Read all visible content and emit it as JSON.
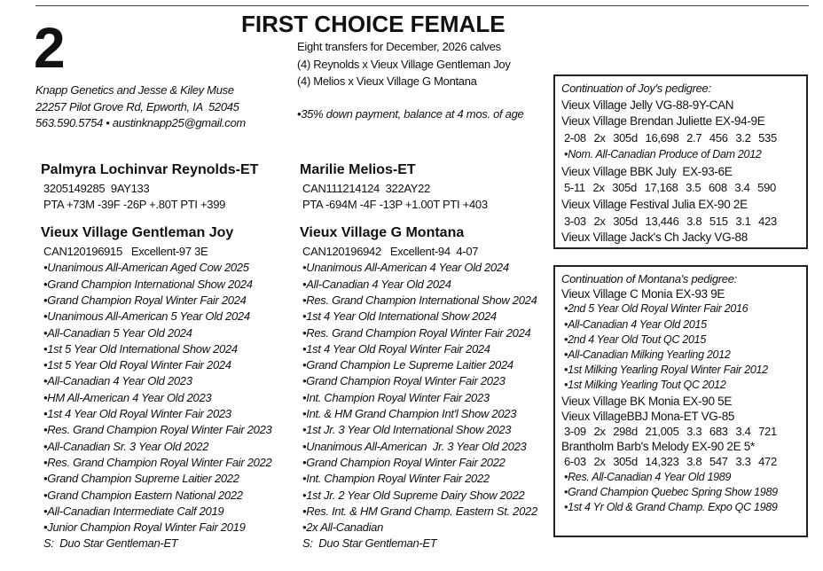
{
  "lot_number": "2",
  "title": "FIRST CHOICE FEMALE",
  "offer": {
    "lines": [
      "Eight transfers for December, 2026 calves",
      "(4) Reynolds x Vieux Village Gentleman Joy",
      "(4) Melios x Vieux Village G Montana"
    ],
    "terms": "•35% down payment, balance at 4 mos. of age"
  },
  "consignor": {
    "lines": [
      "Knapp Genetics and Jesse & Kiley Muse",
      "22257 Pilot Grove Rd, Epworth, IA  52045",
      "563.590.5754 • austinknapp25@gmail.com"
    ]
  },
  "sires": [
    {
      "name": "Palmyra Lochinvar Reynolds-ET",
      "registration": "3205149285  9AY133",
      "proof": "PTA +73M -39F -26P +.80T PTI +399"
    },
    {
      "name": "Marilie Melios-ET",
      "registration": "CAN111214124  322AY22",
      "proof": "PTA -694M -4F -13P +1.00T PTI +403"
    }
  ],
  "dams": [
    {
      "name": "Vieux Village Gentleman Joy",
      "registration": "CAN120196915   Excellent-97 3E",
      "awards": [
        "•Unanimous All-American Aged Cow 2025",
        "•Grand Champion International Show 2024",
        "•Grand Champion Royal Winter Fair 2024",
        "•Unanimous All-American 5 Year Old 2024",
        "•All-Canadian 5 Year Old 2024",
        "•1st 5 Year Old International Show 2024",
        "•1st 5 Year Old Royal Winter Fair 2024",
        "•All-Canadian 4 Year Old 2023",
        "•HM All-American 4 Year Old 2023",
        "•1st 4 Year Old Royal Winter Fair 2023",
        "•Res. Grand Champion Royal Winter Fair 2023",
        "•All-Canadian Sr. 3 Year Old 2022",
        "•Res. Grand Champion Royal Winter Fair 2022",
        "•Grand Champion Supreme Laitier 2022",
        "•Grand Champion Eastern National 2022",
        "•All-Canadian Intermediate Calf 2019",
        "•Junior Champion Royal Winter Fair 2019"
      ],
      "sire": "S:  Duo Star Gentleman-ET"
    },
    {
      "name": "Vieux Village G Montana",
      "registration": "CAN120196942   Excellent-94  4-07",
      "awards": [
        "•Unanimous All-American 4 Year Old 2024",
        "•All-Canadian 4 Year Old 2024",
        "•Res. Grand Champion International Show 2024",
        "•1st 4 Year Old International Show 2024",
        "•Res. Grand Champion Royal Winter Fair 2024",
        "•1st 4 Year Old Royal Winter Fair 2024",
        "•Grand Champion Le Supreme Laitier 2024",
        "•Grand Champion Royal Winter Fair 2023",
        "•Int. Champion Royal Winter Fair 2023",
        "•Int. & HM Grand Champion Int'l Show 2023",
        "•1st Jr. 3 Year Old International Show 2023",
        "•Unanimous All-American  Jr. 3 Year Old 2023",
        "•Grand Champion Royal Winter Fair 2022",
        "•Int. Champion Royal Winter Fair 2022",
        "•1st Jr. 2 Year Old Supreme Dairy Show 2022",
        "•Res. Int. & HM Grand Champ. Eastern St. 2022",
        "•2x All-Canadian"
      ],
      "sire": "S:  Duo Star Gentleman-ET"
    }
  ],
  "pedigree_boxes": [
    {
      "heading": "Continuation of Joy's pedigree:",
      "entries": [
        {
          "name": "Vieux Village Jelly VG-88-9Y-CAN",
          "records": [],
          "notes": []
        },
        {
          "name": "Vieux Village Brendan Juliette EX-94-9E",
          "records": [
            "2-08  2x  305d  16,698  2.7  456  3.2  535"
          ],
          "notes": [
            "•Nom. All-Canadian Produce of Dam 2012"
          ]
        },
        {
          "name": "Vieux Village BBK July  EX-93-6E",
          "records": [
            "5-11  2x  305d  17,168  3.5  608  3.4  590"
          ],
          "notes": []
        },
        {
          "name": "Vieux Village Festival Julia EX-90 2E",
          "records": [
            "3-03  2x  305d  13,446  3.8  515  3.1  423"
          ],
          "notes": []
        },
        {
          "name": "Vieux Village Jack's Ch Jacky VG-88",
          "records": [],
          "notes": []
        }
      ]
    },
    {
      "heading": "Continuation of Montana's pedigree:",
      "entries": [
        {
          "name": "Vieux Village C Monia EX-93 9E",
          "records": [],
          "notes": [
            "•2nd 5 Year Old Royal Winter Fair 2016",
            "•All-Canadian 4 Year Old 2015",
            "•2nd 4 Year Old Tout QC 2015",
            "•All-Canadian Milking Yearling 2012",
            "•1st Milking Yearling Royal Winter Fair 2012",
            "•1st Milking Yearling Tout QC 2012"
          ]
        },
        {
          "name": "Vieux Village BK Monia EX-90 5E",
          "records": [],
          "notes": []
        },
        {
          "name": "Vieux VillageBBJ Mona-ET VG-85",
          "records": [
            "3-09  2x  298d  21,005  3.3  683  3.4  721"
          ],
          "notes": []
        },
        {
          "name": "Brantholm Barb's Melody EX-90 2E 5*",
          "records": [
            "6-03  2x  305d  14,323  3.8  547  3.3  472"
          ],
          "notes": [
            "•Res. All-Canadian 4 Year Old 1989",
            "•Grand Champion Quebec Spring Show 1989",
            "•1st 4 Yr Old & Grand Champ. Expo QC 1989"
          ]
        }
      ]
    }
  ]
}
